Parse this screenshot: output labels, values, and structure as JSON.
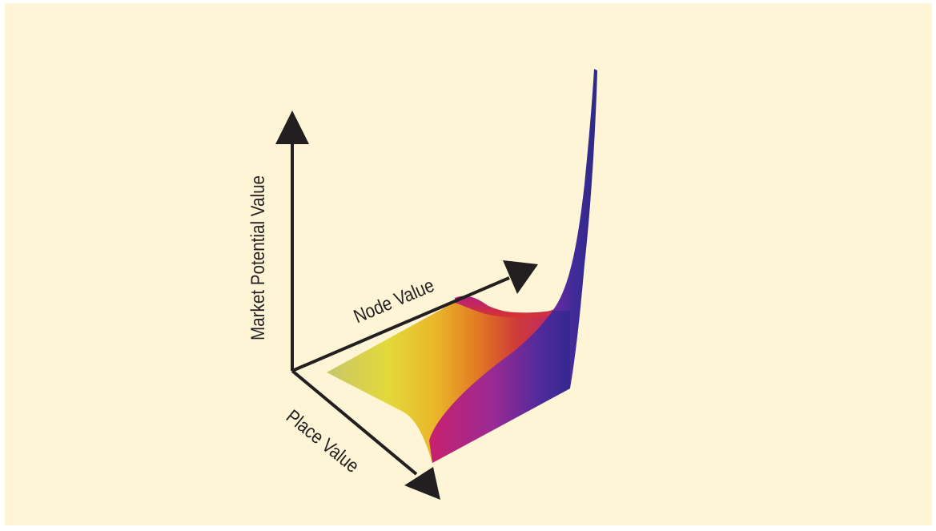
{
  "diagram": {
    "axes": {
      "vertical_label": "Market Potential Value",
      "depth_label": "Node Value",
      "horizontal_label": "Place Value"
    },
    "colors": {
      "background": "#fdf5d6",
      "axis": "#231f20",
      "surface_low": "#d8d25a",
      "surface_mid": "#e9a020",
      "surface_high": "#c2185b",
      "surface_peak": "#3a2a96"
    }
  }
}
